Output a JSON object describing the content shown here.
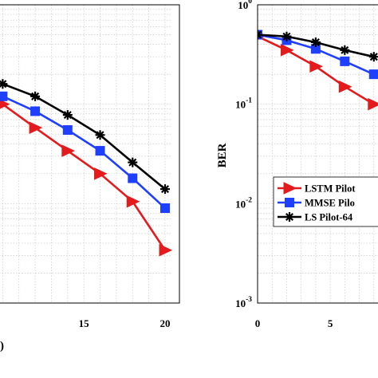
{
  "chart_data": [
    {
      "type": "line",
      "title": "",
      "xlabel": "",
      "ylabel": "",
      "yscale": "log",
      "xlim": [
        9,
        20
      ],
      "ylim": [
        0.003,
        1
      ],
      "xticks": [
        15,
        20
      ],
      "grid": true,
      "partial_label_text": ")",
      "series": [
        {
          "color": "#e41a1c",
          "marker": "triangle-right",
          "x": [
            10,
            12,
            14,
            16,
            18,
            20
          ],
          "values": [
            0.1,
            0.058,
            0.034,
            0.02,
            0.0105,
            0.0034
          ]
        },
        {
          "color": "#1f3fff",
          "marker": "square",
          "x": [
            10,
            12,
            14,
            16,
            18,
            20
          ],
          "values": [
            0.12,
            0.085,
            0.055,
            0.034,
            0.018,
            0.009
          ]
        },
        {
          "color": "#000000",
          "marker": "asterisk",
          "x": [
            10,
            12,
            14,
            16,
            18,
            20
          ],
          "values": [
            0.16,
            0.12,
            0.078,
            0.049,
            0.026,
            0.014
          ]
        }
      ]
    },
    {
      "type": "line",
      "title": "",
      "xlabel": "",
      "ylabel": "BER",
      "yscale": "log",
      "xlim": [
        0,
        9
      ],
      "ylim": [
        0.001,
        1
      ],
      "xticks": [
        0,
        5
      ],
      "yticks": [
        "10^0",
        "10^-1",
        "10^-2",
        "10^-3"
      ],
      "grid": true,
      "legend_position": "bottom-right",
      "series": [
        {
          "name": "LSTM Pilot",
          "color": "#e41a1c",
          "marker": "triangle-right",
          "x": [
            0,
            2,
            4,
            6,
            8
          ],
          "values": [
            0.48,
            0.35,
            0.24,
            0.15,
            0.1
          ]
        },
        {
          "name": "MMSE Pilo",
          "color": "#1f3fff",
          "marker": "square",
          "x": [
            0,
            2,
            4,
            6,
            8
          ],
          "values": [
            0.5,
            0.44,
            0.36,
            0.27,
            0.2
          ]
        },
        {
          "name": "LS Pilot-64",
          "color": "#000000",
          "marker": "asterisk",
          "x": [
            0,
            2,
            4,
            6,
            8
          ],
          "values": [
            0.5,
            0.48,
            0.42,
            0.35,
            0.3
          ]
        }
      ]
    }
  ]
}
